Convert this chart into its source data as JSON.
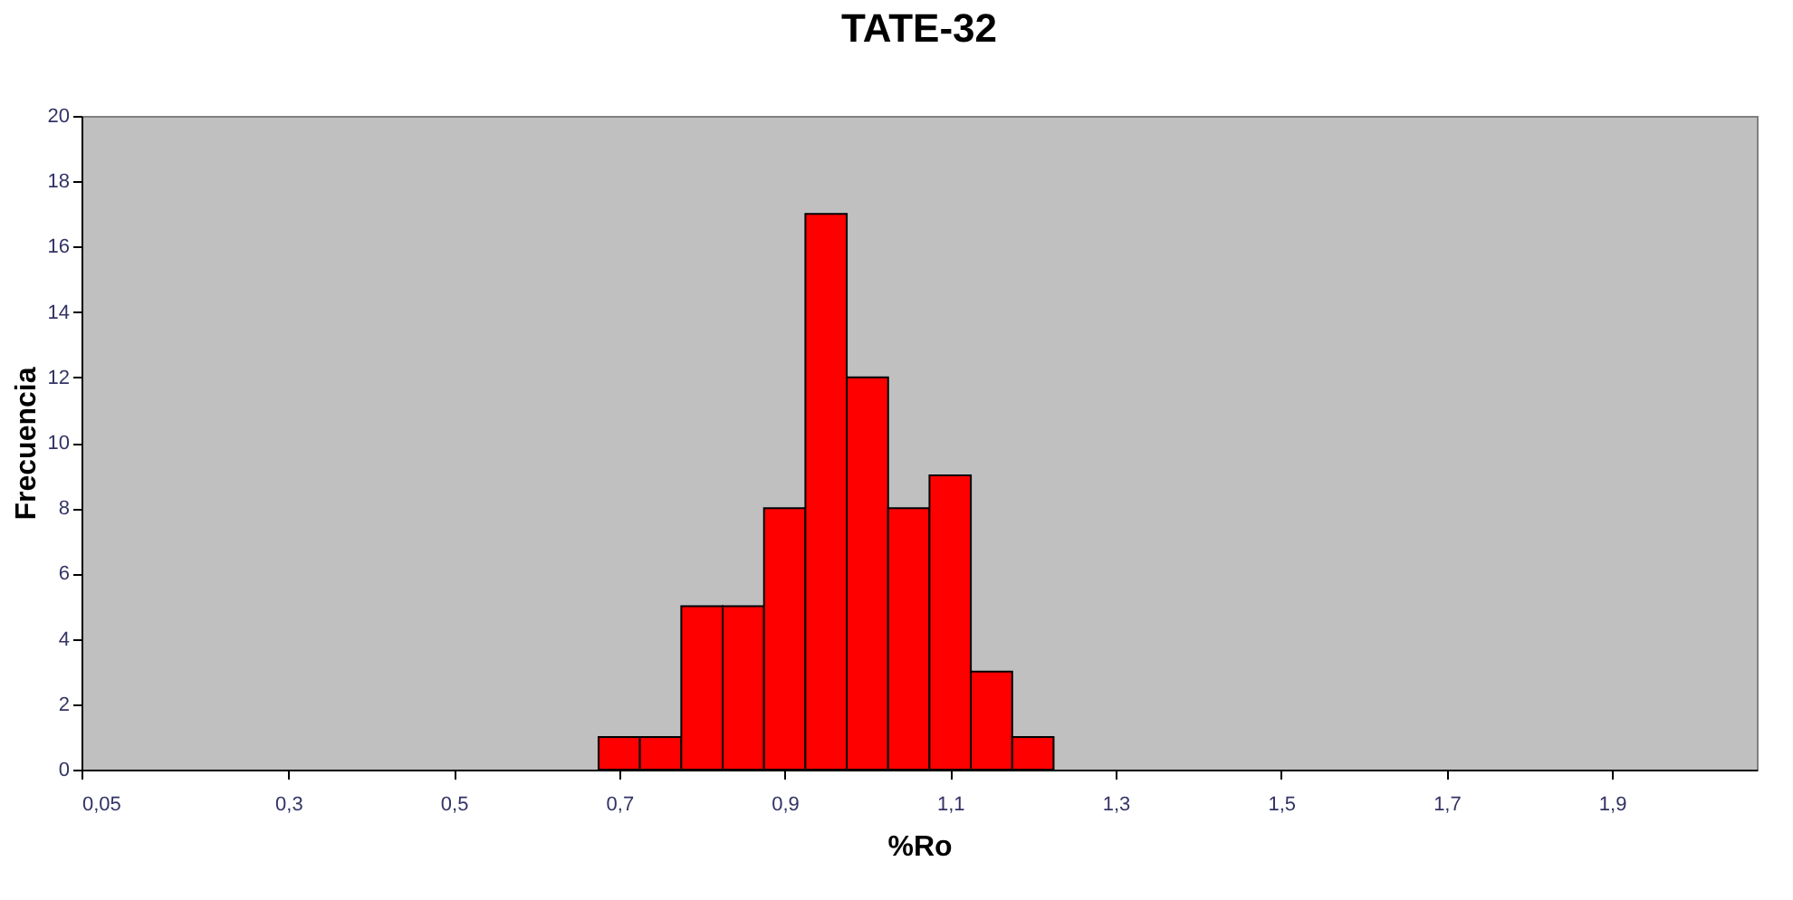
{
  "chart_data": {
    "type": "histogram",
    "title": "TATE-32",
    "xlabel": "%Ro",
    "ylabel": "Frecuencia",
    "bins": [
      0.675,
      0.725,
      0.775,
      0.825,
      0.875,
      0.925,
      0.975,
      1.025,
      1.075,
      1.125,
      1.175,
      1.225
    ],
    "values": [
      1,
      1,
      5,
      5,
      8,
      17,
      12,
      8,
      9,
      3,
      1
    ],
    "color": "#ff0000",
    "xlim": [
      0.05,
      2.075
    ],
    "xticks": [
      {
        "value": 0.05,
        "label": "0,05"
      },
      {
        "value": 0.3,
        "label": "0,3"
      },
      {
        "value": 0.5,
        "label": "0,5"
      },
      {
        "value": 0.7,
        "label": "0,7"
      },
      {
        "value": 0.9,
        "label": "0,9"
      },
      {
        "value": 1.1,
        "label": "1,1"
      },
      {
        "value": 1.3,
        "label": "1,3"
      },
      {
        "value": 1.5,
        "label": "1,5"
      },
      {
        "value": 1.7,
        "label": "1,7"
      },
      {
        "value": 1.9,
        "label": "1,9"
      }
    ],
    "ylim": [
      0,
      20
    ],
    "yticks": [
      0,
      2,
      4,
      6,
      8,
      10,
      12,
      14,
      16,
      18,
      20
    ],
    "grid": false
  }
}
